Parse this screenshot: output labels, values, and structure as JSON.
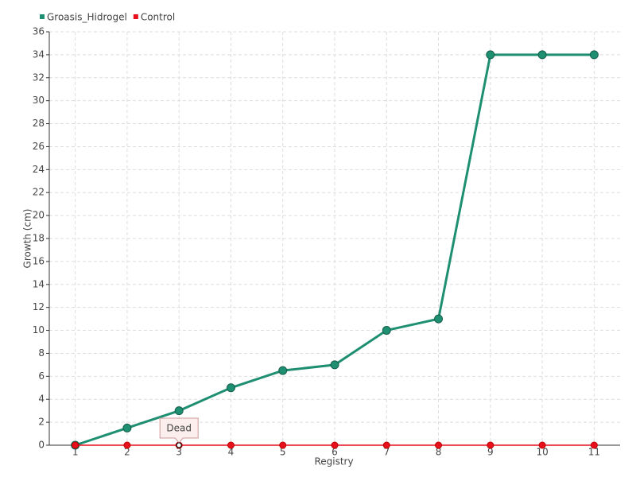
{
  "chart_data": {
    "type": "line",
    "x": [
      1,
      2,
      3,
      4,
      5,
      6,
      7,
      8,
      9,
      10,
      11
    ],
    "series": [
      {
        "name": "Groasis_Hidrogel",
        "color": "#1f8f72",
        "values": [
          0,
          1.5,
          3,
          5,
          6.5,
          7,
          10,
          11,
          34,
          34,
          34
        ]
      },
      {
        "name": "Control",
        "color": "#e8101c",
        "values": [
          0,
          0,
          0,
          0,
          0,
          0,
          0,
          0,
          0,
          0,
          0
        ]
      }
    ],
    "x_label": "Registry",
    "y_label": "Growth (cm)",
    "xlim": [
      0.5,
      11.5
    ],
    "xticks": [
      1,
      2,
      3,
      4,
      5,
      6,
      7,
      8,
      9,
      10,
      11
    ],
    "ylim": [
      0,
      36
    ],
    "yticks": [
      0,
      2,
      4,
      6,
      8,
      10,
      12,
      14,
      16,
      18,
      20,
      22,
      24,
      26,
      28,
      30,
      32,
      34,
      36
    ],
    "grid": true,
    "legend": "top-left",
    "annotation": {
      "text": "Dead",
      "x": 3,
      "y": 0
    }
  }
}
